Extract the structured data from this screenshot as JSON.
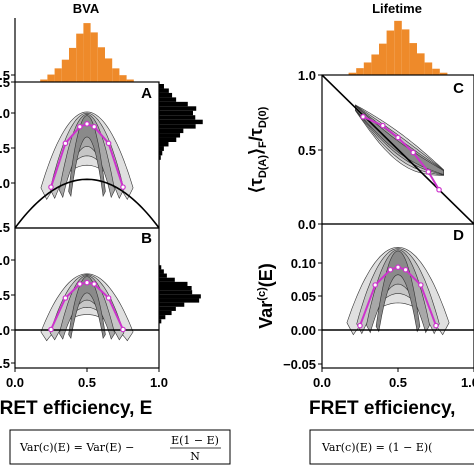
{
  "titles": {
    "left": "BVA",
    "right": "Lifetime"
  },
  "panel_letters": {
    "A": "A",
    "B": "B",
    "C": "C",
    "D": "D"
  },
  "x_ticks": [
    "0.0",
    "0.5",
    "1.0"
  ],
  "left_y_ticks_A": [
    ".5",
    ".0",
    ".5",
    ".0"
  ],
  "left_y_ticks_B": [
    ".5",
    ".0",
    ".5",
    ".0",
    ".5"
  ],
  "left_hist_tick": ".5",
  "C_y_ticks": [
    "1.0",
    "0.5",
    "0.0"
  ],
  "D_y_ticks": [
    "0.10",
    "0.05",
    "0.00",
    "−0.05"
  ],
  "xlabel_left": "FRET efficiency, E",
  "xlabel_right": "FRET efficiency, ",
  "ylabel_C_main": "⟨τ",
  "ylabel_C_sub1": "D(A)",
  "ylabel_C_mid": "⟩",
  "ylabel_C_sub2": "F",
  "ylabel_C_slash": "/τ",
  "ylabel_C_sub3": "D(0)",
  "ylabel_D_main": "Var",
  "ylabel_D_sup": "(c)",
  "ylabel_D_tail": "(E)",
  "eq_left_lhs": "Var(c)(E) = Var(E) −",
  "eq_left_num": "E(1 − E)",
  "eq_left_den": "N",
  "eq_right": "Var(c)(E) = (1 − E)(",
  "colors": {
    "hist": "#ee8a2a",
    "fit": "#cc33cc",
    "dark": "#000000"
  },
  "chart_data": [
    {
      "type": "bar",
      "panel": "top-hist-left",
      "xlim": [
        0.0,
        1.0
      ],
      "x": [
        0.2,
        0.25,
        0.3,
        0.35,
        0.4,
        0.45,
        0.5,
        0.55,
        0.6,
        0.65,
        0.7,
        0.75,
        0.8
      ],
      "values": [
        0.04,
        0.12,
        0.22,
        0.36,
        0.55,
        0.78,
        0.95,
        0.8,
        0.56,
        0.38,
        0.22,
        0.11,
        0.04
      ]
    },
    {
      "type": "scatter",
      "panel": "A",
      "xlim": [
        0.0,
        1.0
      ],
      "ylim": [
        0.0,
        1.5
      ],
      "fit_x": [
        0.25,
        0.35,
        0.45,
        0.5,
        0.55,
        0.65,
        0.75
      ],
      "fit_y": [
        0.42,
        0.87,
        1.04,
        1.07,
        1.04,
        0.87,
        0.42
      ],
      "parabola": "E(1-E)*4*0.5"
    },
    {
      "type": "scatter",
      "panel": "B",
      "xlim": [
        0.0,
        1.0
      ],
      "ylim": [
        -0.5,
        1.5
      ],
      "fit_x": [
        0.25,
        0.35,
        0.45,
        0.5,
        0.55,
        0.65,
        0.75
      ],
      "fit_y": [
        0.05,
        0.5,
        0.7,
        0.72,
        0.7,
        0.5,
        0.05
      ],
      "zero_line": 0.0
    },
    {
      "type": "scatter",
      "panel": "C",
      "xlim": [
        0.0,
        1.0
      ],
      "ylim": [
        0.0,
        1.0
      ],
      "fit_x": [
        0.27,
        0.4,
        0.5,
        0.6,
        0.7,
        0.77
      ],
      "fit_y": [
        0.72,
        0.66,
        0.58,
        0.48,
        0.35,
        0.23
      ]
    },
    {
      "type": "scatter",
      "panel": "D",
      "xlim": [
        0.0,
        1.0
      ],
      "ylim": [
        -0.05,
        0.12
      ],
      "fit_x": [
        0.25,
        0.35,
        0.45,
        0.5,
        0.55,
        0.65,
        0.75
      ],
      "fit_y": [
        0.0,
        0.048,
        0.066,
        0.069,
        0.066,
        0.048,
        0.0
      ]
    },
    {
      "type": "bar",
      "panel": "top-hist-right",
      "xlim": [
        0.0,
        1.0
      ],
      "x": [
        0.2,
        0.25,
        0.3,
        0.35,
        0.4,
        0.45,
        0.5,
        0.55,
        0.6,
        0.65,
        0.7,
        0.75,
        0.8
      ],
      "values": [
        0.04,
        0.12,
        0.22,
        0.36,
        0.55,
        0.78,
        0.95,
        0.8,
        0.56,
        0.38,
        0.22,
        0.11,
        0.04
      ]
    }
  ]
}
